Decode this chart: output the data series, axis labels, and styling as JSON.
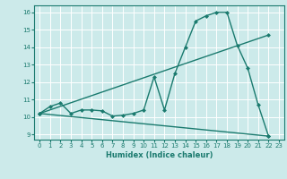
{
  "bg_color": "#cceaea",
  "grid_color": "#ffffff",
  "line_color": "#1a7a6e",
  "xlabel": "Humidex (Indice chaleur)",
  "xlim": [
    -0.5,
    23.5
  ],
  "ylim": [
    8.7,
    16.4
  ],
  "xticks": [
    0,
    1,
    2,
    3,
    4,
    5,
    6,
    7,
    8,
    9,
    10,
    11,
    12,
    13,
    14,
    15,
    16,
    17,
    18,
    19,
    20,
    21,
    22,
    23
  ],
  "yticks": [
    9,
    10,
    11,
    12,
    13,
    14,
    15,
    16
  ],
  "line1_x": [
    0,
    1,
    2,
    3,
    4,
    5,
    6,
    7,
    8,
    9,
    10,
    11,
    12,
    13,
    14,
    15,
    16,
    17,
    18,
    19,
    20,
    21,
    22
  ],
  "line1_y": [
    10.2,
    10.6,
    10.8,
    10.2,
    10.4,
    10.4,
    10.35,
    10.05,
    10.1,
    10.2,
    10.4,
    12.3,
    10.4,
    12.5,
    14.0,
    15.5,
    15.8,
    16.0,
    16.0,
    14.1,
    12.8,
    10.7,
    8.9
  ],
  "line2_x": [
    0,
    22
  ],
  "line2_y": [
    10.2,
    14.7
  ],
  "line3_x": [
    0,
    22
  ],
  "line3_y": [
    10.2,
    8.9
  ],
  "marker": "D",
  "markersize": 2.0,
  "linewidth": 1.0,
  "tick_fontsize": 5.0,
  "xlabel_fontsize": 6.0
}
